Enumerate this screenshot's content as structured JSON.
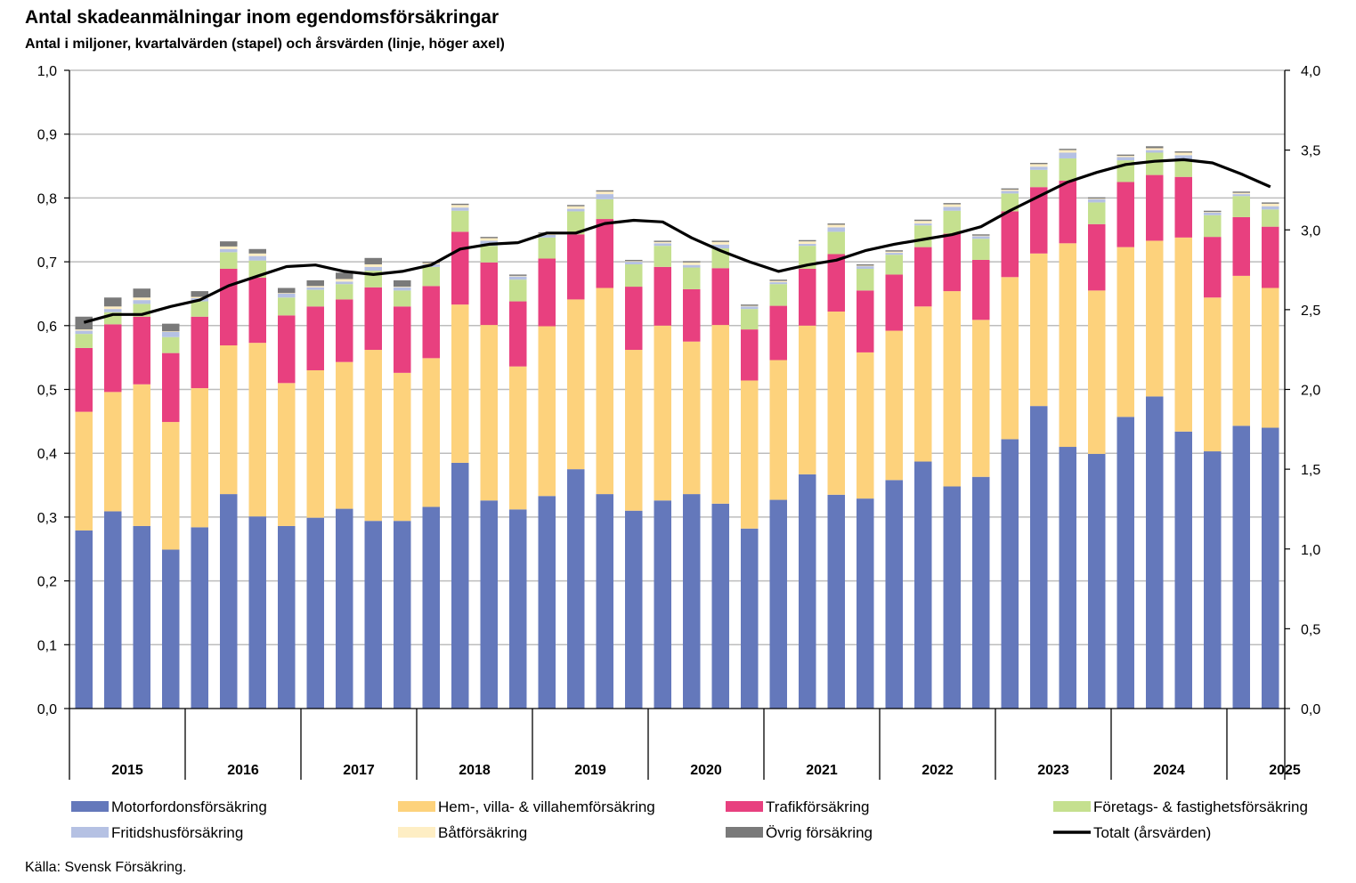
{
  "title": "Antal skadeanmälningar inom egendomsförsäkringar",
  "subtitle": "Antal i miljoner, kvartalvärden (stapel) och årsvärden (linje, höger axel)",
  "source": "Källa: Svensk Försäkring.",
  "chart_data": {
    "type": "bar",
    "stacked": true,
    "years": [
      "2015",
      "2016",
      "2017",
      "2018",
      "2019",
      "2020",
      "2021",
      "2022",
      "2023",
      "2024",
      "2025"
    ],
    "quarters_per_year": [
      4,
      4,
      4,
      4,
      4,
      4,
      4,
      4,
      4,
      4,
      2
    ],
    "y_left": {
      "min": 0,
      "max": 1.0,
      "step": 0.1,
      "ticks": [
        "0,0",
        "0,1",
        "0,2",
        "0,3",
        "0,4",
        "0,5",
        "0,6",
        "0,7",
        "0,8",
        "0,9",
        "1,0"
      ]
    },
    "y_right": {
      "min": 0,
      "max": 4.0,
      "step": 0.5,
      "ticks": [
        "0,0",
        "0,5",
        "1,0",
        "1,5",
        "2,0",
        "2,5",
        "3,0",
        "3,5",
        "4,0"
      ]
    },
    "series": [
      {
        "name": "Motorfordonsförsäkring",
        "color": "#6478bb",
        "values": [
          0.279,
          0.309,
          0.286,
          0.249,
          0.284,
          0.336,
          0.301,
          0.286,
          0.299,
          0.313,
          0.294,
          0.294,
          0.316,
          0.385,
          0.326,
          0.312,
          0.333,
          0.375,
          0.336,
          0.31,
          0.326,
          0.336,
          0.321,
          0.282,
          0.327,
          0.367,
          0.335,
          0.329,
          0.358,
          0.387,
          0.348,
          0.363,
          0.422,
          0.474,
          0.41,
          0.399,
          0.457,
          0.489,
          0.434,
          0.403,
          0.443,
          0.44
        ]
      },
      {
        "name": "Hem-, villa- & villahemförsäkring",
        "color": "#fdd27c",
        "values": [
          0.186,
          0.187,
          0.222,
          0.2,
          0.218,
          0.233,
          0.272,
          0.224,
          0.231,
          0.23,
          0.268,
          0.232,
          0.233,
          0.248,
          0.275,
          0.224,
          0.266,
          0.266,
          0.323,
          0.252,
          0.274,
          0.239,
          0.28,
          0.232,
          0.219,
          0.233,
          0.287,
          0.229,
          0.234,
          0.243,
          0.306,
          0.246,
          0.254,
          0.239,
          0.319,
          0.256,
          0.266,
          0.244,
          0.304,
          0.241,
          0.235,
          0.219
        ]
      },
      {
        "name": "Trafikförsäkring",
        "color": "#e8407f",
        "values": [
          0.1,
          0.106,
          0.106,
          0.108,
          0.112,
          0.12,
          0.102,
          0.106,
          0.1,
          0.098,
          0.098,
          0.104,
          0.113,
          0.114,
          0.098,
          0.102,
          0.106,
          0.102,
          0.108,
          0.099,
          0.092,
          0.082,
          0.089,
          0.08,
          0.085,
          0.089,
          0.09,
          0.097,
          0.088,
          0.093,
          0.09,
          0.094,
          0.103,
          0.104,
          0.098,
          0.104,
          0.102,
          0.103,
          0.095,
          0.095,
          0.092,
          0.096
        ]
      },
      {
        "name": "Företags- & fastighetsförsäkring",
        "color": "#c5e08f",
        "values": [
          0.022,
          0.019,
          0.02,
          0.025,
          0.024,
          0.026,
          0.027,
          0.028,
          0.026,
          0.024,
          0.026,
          0.025,
          0.03,
          0.033,
          0.026,
          0.034,
          0.033,
          0.036,
          0.031,
          0.035,
          0.033,
          0.034,
          0.031,
          0.032,
          0.034,
          0.036,
          0.035,
          0.034,
          0.031,
          0.034,
          0.036,
          0.033,
          0.028,
          0.027,
          0.035,
          0.034,
          0.034,
          0.035,
          0.025,
          0.034,
          0.033,
          0.027
        ]
      },
      {
        "name": "Fritidshusförsäkring",
        "color": "#b5c1e3",
        "values": [
          0.005,
          0.005,
          0.006,
          0.008,
          0.005,
          0.005,
          0.007,
          0.006,
          0.004,
          0.004,
          0.006,
          0.005,
          0.004,
          0.005,
          0.008,
          0.005,
          0.004,
          0.004,
          0.008,
          0.004,
          0.004,
          0.004,
          0.006,
          0.004,
          0.003,
          0.003,
          0.007,
          0.004,
          0.003,
          0.003,
          0.006,
          0.004,
          0.004,
          0.005,
          0.009,
          0.005,
          0.005,
          0.004,
          0.009,
          0.004,
          0.003,
          0.005
        ]
      },
      {
        "name": "Båtförsäkring",
        "color": "#feeec4",
        "values": [
          0.002,
          0.004,
          0.004,
          0.001,
          0.002,
          0.004,
          0.004,
          0.001,
          0.002,
          0.004,
          0.004,
          0.001,
          0.002,
          0.004,
          0.004,
          0.001,
          0.002,
          0.004,
          0.004,
          0.001,
          0.002,
          0.004,
          0.004,
          0.001,
          0.002,
          0.004,
          0.004,
          0.001,
          0.002,
          0.004,
          0.004,
          0.001,
          0.002,
          0.004,
          0.004,
          0.001,
          0.002,
          0.003,
          0.004,
          0.001,
          0.002,
          0.004
        ]
      },
      {
        "name": "Övrig försäkring",
        "color": "#7a7a7a",
        "values": [
          0.02,
          0.014,
          0.014,
          0.012,
          0.009,
          0.008,
          0.007,
          0.008,
          0.009,
          0.01,
          0.01,
          0.01,
          0.002,
          0.002,
          0.002,
          0.002,
          0.002,
          0.002,
          0.002,
          0.002,
          0.002,
          0.002,
          0.002,
          0.002,
          0.002,
          0.002,
          0.002,
          0.002,
          0.002,
          0.002,
          0.002,
          0.002,
          0.002,
          0.002,
          0.002,
          0.002,
          0.002,
          0.003,
          0.002,
          0.002,
          0.002,
          0.002
        ]
      }
    ],
    "line": {
      "name": "Totalt (årsvärden)",
      "color": "#000000",
      "values": [
        2.42,
        2.47,
        2.47,
        2.52,
        2.56,
        2.65,
        2.71,
        2.77,
        2.78,
        2.74,
        2.72,
        2.74,
        2.78,
        2.88,
        2.91,
        2.92,
        2.98,
        2.98,
        3.04,
        3.06,
        3.05,
        2.95,
        2.87,
        2.8,
        2.74,
        2.78,
        2.81,
        2.87,
        2.91,
        2.94,
        2.97,
        3.02,
        3.12,
        3.21,
        3.3,
        3.36,
        3.41,
        3.43,
        3.44,
        3.42,
        3.35,
        3.27
      ]
    },
    "legend_position": "bottom"
  }
}
